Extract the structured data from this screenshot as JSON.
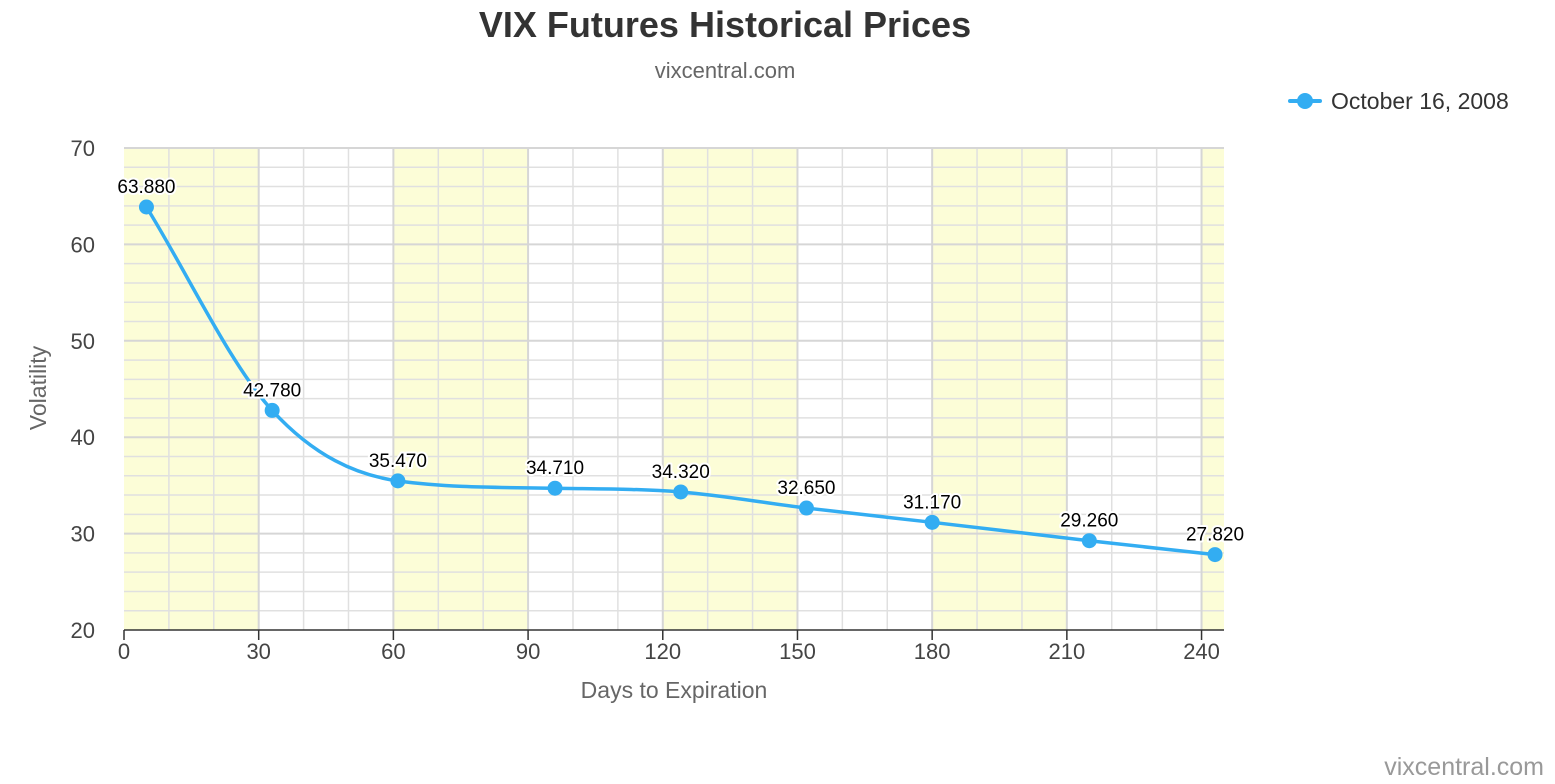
{
  "chart_data": {
    "type": "line",
    "title": "VIX Futures Historical Prices",
    "subtitle": "vixcentral.com",
    "xlabel": "Days to Expiration",
    "ylabel": "Volatility",
    "xlim": [
      0,
      245
    ],
    "ylim": [
      20,
      70
    ],
    "x_ticks": [
      0,
      30,
      60,
      90,
      120,
      150,
      180,
      210,
      240
    ],
    "y_ticks": [
      20,
      30,
      40,
      50,
      60,
      70
    ],
    "grid": true,
    "plot_bands": [
      [
        0,
        30
      ],
      [
        60,
        90
      ],
      [
        120,
        150
      ],
      [
        180,
        210
      ],
      [
        240,
        245
      ]
    ],
    "legend_position": "top-right",
    "series": [
      {
        "name": "October 16, 2008",
        "color": "#33adf2",
        "points": [
          {
            "x": 5,
            "y": 63.88,
            "label": "63.880"
          },
          {
            "x": 33,
            "y": 42.78,
            "label": "42.780"
          },
          {
            "x": 61,
            "y": 35.47,
            "label": "35.470"
          },
          {
            "x": 96,
            "y": 34.71,
            "label": "34.710"
          },
          {
            "x": 124,
            "y": 34.32,
            "label": "34.320"
          },
          {
            "x": 152,
            "y": 32.65,
            "label": "32.650"
          },
          {
            "x": 180,
            "y": 31.17,
            "label": "31.170"
          },
          {
            "x": 215,
            "y": 29.26,
            "label": "29.260"
          },
          {
            "x": 243,
            "y": 27.82,
            "label": "27.820"
          }
        ]
      }
    ]
  },
  "colors": {
    "band": "#fcfdd7",
    "grid": "#e0e0e0",
    "series": "#33adf2"
  },
  "credits": "vixcentral.com"
}
